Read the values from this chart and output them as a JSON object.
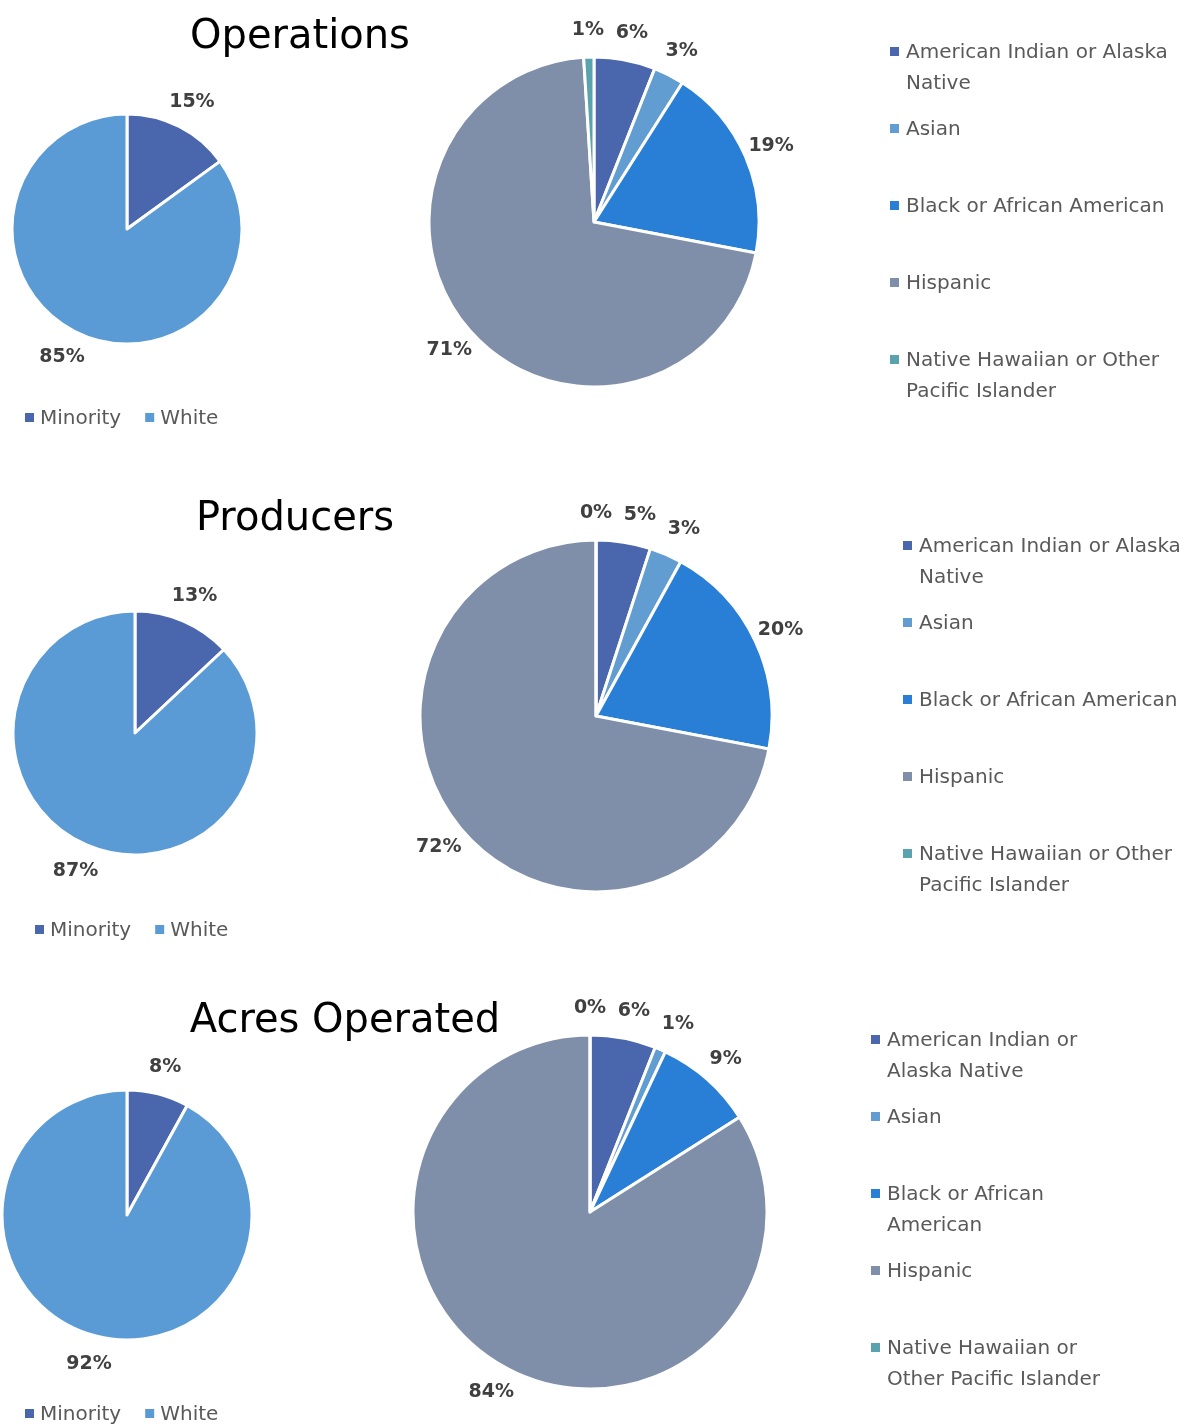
{
  "chart_data": [
    {
      "type": "pie",
      "title": "Operations",
      "categories": [
        "Minority",
        "White"
      ],
      "values": [
        15,
        85
      ],
      "colors": [
        "#4a66ac",
        "#5b9bd5"
      ],
      "value_labels": [
        "15%",
        "85%"
      ],
      "legend": "bottom"
    },
    {
      "type": "pie",
      "categories": [
        "American Indian or Alaska Native",
        "Asian",
        "Black or African American",
        "Hispanic",
        "Native Hawaiian or Other Pacific Islander"
      ],
      "values": [
        6,
        3,
        19,
        71,
        1
      ],
      "colors": [
        "#4a66ac",
        "#629dd1",
        "#297fd5",
        "#7f8fa9",
        "#5aa2ae"
      ],
      "value_labels": [
        "6%",
        "3%",
        "19%",
        "71%",
        "1%"
      ],
      "legend": "right"
    },
    {
      "type": "pie",
      "title": "Producers",
      "categories": [
        "Minority",
        "White"
      ],
      "values": [
        13,
        87
      ],
      "colors": [
        "#4a66ac",
        "#5b9bd5"
      ],
      "value_labels": [
        "13%",
        "87%"
      ],
      "legend": "bottom"
    },
    {
      "type": "pie",
      "categories": [
        "American Indian or Alaska Native",
        "Asian",
        "Black or African American",
        "Hispanic",
        "Native Hawaiian or Other Pacific Islander"
      ],
      "values": [
        5,
        3,
        20,
        72,
        0
      ],
      "colors": [
        "#4a66ac",
        "#629dd1",
        "#297fd5",
        "#7f8fa9",
        "#5aa2ae"
      ],
      "value_labels": [
        "5%",
        "3%",
        "20%",
        "72%",
        "0%"
      ],
      "legend": "right"
    },
    {
      "type": "pie",
      "title": "Acres Operated",
      "categories": [
        "Minority",
        "White"
      ],
      "values": [
        8,
        92
      ],
      "colors": [
        "#4a66ac",
        "#5b9bd5"
      ],
      "value_labels": [
        "8%",
        "92%"
      ],
      "legend": "bottom"
    },
    {
      "type": "pie",
      "categories": [
        "American Indian or Alaska Native",
        "Asian",
        "Black or African American",
        "Hispanic",
        "Native Hawaiian or Other Pacific Islander"
      ],
      "values": [
        6,
        1,
        9,
        84,
        0
      ],
      "colors": [
        "#4a66ac",
        "#629dd1",
        "#297fd5",
        "#7f8fa9",
        "#5aa2ae"
      ],
      "value_labels": [
        "6%",
        "1%",
        "9%",
        "84%",
        "0%"
      ],
      "legend": "right"
    }
  ]
}
